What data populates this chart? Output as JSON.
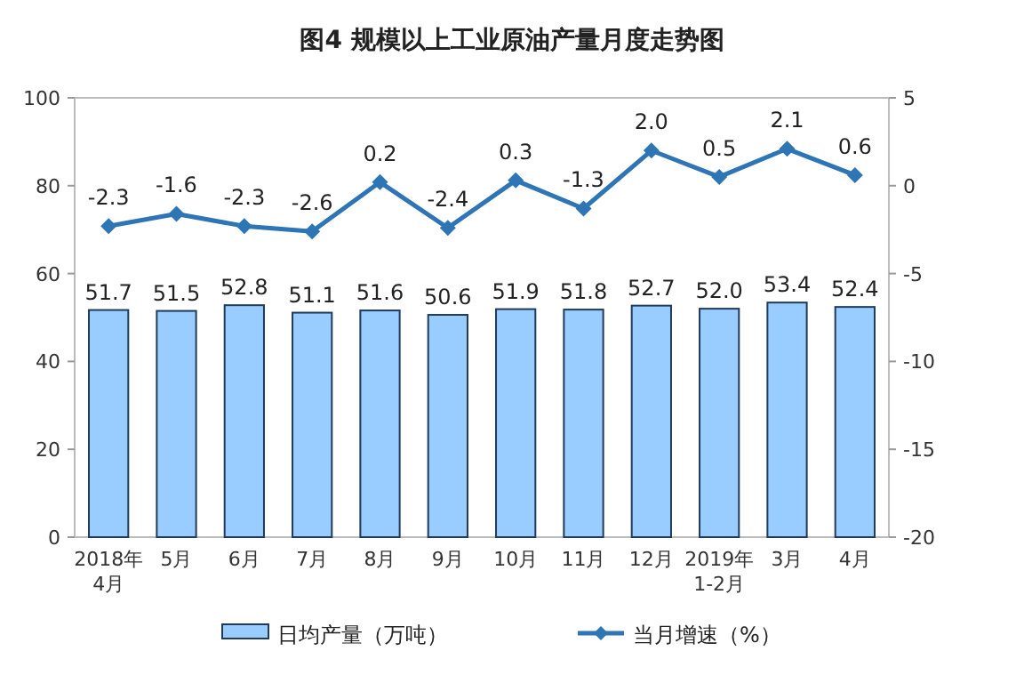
{
  "chart_data": {
    "type": "bar",
    "title": "图4  规模以上工业原油产量月度走势图",
    "categories": [
      "2018年4月",
      "5月",
      "6月",
      "7月",
      "8月",
      "9月",
      "10月",
      "11月",
      "12月",
      "2019年1-2月",
      "3月",
      "4月"
    ],
    "series": [
      {
        "name": "日均产量（万吨）",
        "color": "#99ccff",
        "values": [
          51.7,
          51.5,
          52.8,
          51.1,
          51.6,
          50.6,
          51.9,
          51.8,
          52.7,
          52.0,
          53.4,
          52.4
        ],
        "value_labels": [
          "51.7",
          "51.5",
          "52.8",
          "51.1",
          "51.6",
          "50.6",
          "51.9",
          "51.8",
          "52.7",
          "52.0",
          "53.4",
          "52.4"
        ]
      },
      {
        "name": "当月增速（%）",
        "type": "line",
        "axis": "y2",
        "color": "#2e75b6",
        "values": [
          -2.3,
          -1.6,
          -2.3,
          -2.6,
          0.2,
          -2.4,
          0.3,
          -1.3,
          2.0,
          0.5,
          2.1,
          0.6
        ],
        "value_labels": [
          "-2.3",
          "-1.6",
          "-2.3",
          "-2.6",
          "0.2",
          "-2.4",
          "0.3",
          "-1.3",
          "2.0",
          "0.5",
          "2.1",
          "0.6"
        ]
      }
    ],
    "ylim": [
      0,
      100
    ],
    "yticks": [
      0,
      20,
      40,
      60,
      80,
      100
    ],
    "y2lim": [
      -20,
      5
    ],
    "y2ticks": [
      -20,
      -15,
      -10,
      -5,
      0,
      5
    ],
    "marker": "diamond",
    "legend": "bottom"
  }
}
